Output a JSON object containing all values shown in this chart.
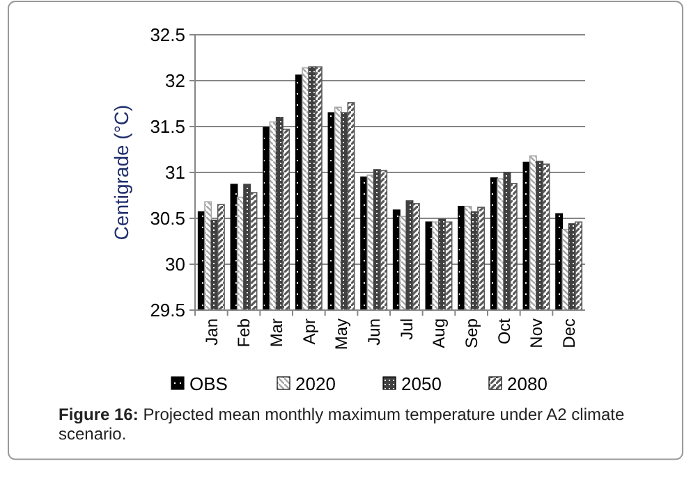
{
  "chart_data": {
    "type": "bar",
    "ylabel": "Centigrade (°C)",
    "categories": [
      "Jan",
      "Feb",
      "Mar",
      "Apr",
      "May",
      "Jun",
      "Jul",
      "Aug",
      "Sep",
      "Oct",
      "Nov",
      "Dec"
    ],
    "series": [
      {
        "name": "OBS",
        "color": "#000000",
        "values": [
          30.57,
          30.87,
          31.49,
          32.06,
          31.65,
          30.95,
          30.59,
          30.46,
          30.63,
          30.94,
          31.11,
          30.55
        ]
      },
      {
        "name": "2020",
        "color": "#a6a6a6",
        "values": [
          30.68,
          30.73,
          31.55,
          32.14,
          31.71,
          30.97,
          30.52,
          30.46,
          30.63,
          30.93,
          31.18,
          30.38
        ]
      },
      {
        "name": "2050",
        "color": "#404040",
        "values": [
          30.48,
          30.87,
          31.6,
          32.15,
          31.65,
          31.03,
          30.69,
          30.49,
          30.57,
          31.0,
          31.12,
          30.44
        ]
      },
      {
        "name": "2080",
        "color": "#595959",
        "values": [
          30.65,
          30.78,
          31.47,
          32.15,
          31.76,
          31.02,
          30.66,
          30.46,
          30.62,
          30.88,
          31.09,
          30.46
        ]
      }
    ],
    "ylim": [
      29.5,
      32.5
    ],
    "yticks": [
      29.5,
      30,
      30.5,
      31,
      31.5,
      32,
      32.5
    ],
    "grid": "y",
    "legend": "bottom",
    "annotations": [
      "Figure 16: Projected mean monthly maximum temperature under A2 climate scenario."
    ]
  }
}
